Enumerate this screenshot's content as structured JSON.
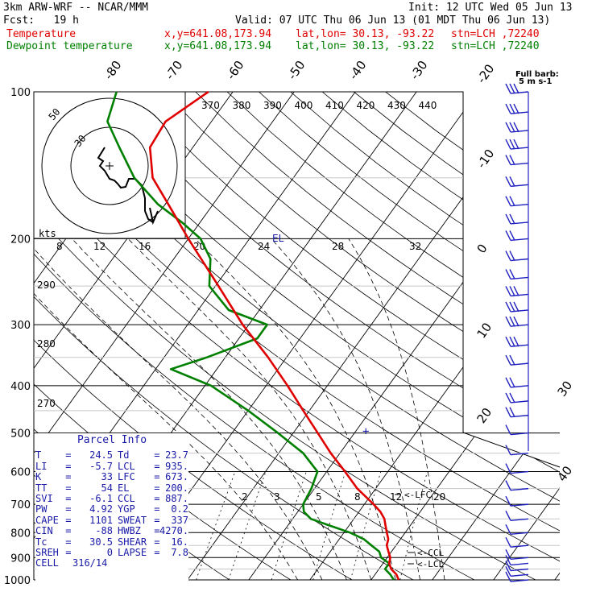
{
  "header": {
    "model": "3km ARW-WRF -- NCAR/MMM",
    "init": "Init: 12 UTC Wed 05 Jun 13",
    "fcst": "Fcst:   19 h",
    "valid": "Valid: 07 UTC Thu 06 Jun 13 (01 MDT Thu 06 Jun 13)",
    "temp_label": "Temperature",
    "dew_label": "Dewpoint temperature",
    "xy": "x,y=641.08,173.94",
    "latlon": "lat,lon= 30.13, -93.22",
    "stn": "stn=LCH ,72240"
  },
  "barb_legend": {
    "title": "Full barb:",
    "unit": "5 m s-1"
  },
  "colors": {
    "temperature": "#e00000",
    "dewpoint": "#008000",
    "barbs": "#2020c0",
    "parcel_text": "#1a1aa8"
  },
  "chart_data": {
    "type": "line",
    "subtype": "skew-t log-p",
    "pressure_axis": {
      "unit": "hPa",
      "range": [
        1000,
        100
      ],
      "scale": "log",
      "ticks": [
        100,
        200,
        300,
        400,
        500,
        600,
        700,
        800,
        900,
        1000
      ]
    },
    "temperature_axis": {
      "unit": "C",
      "skewed": true,
      "ticks": [
        -80,
        -70,
        -60,
        -50,
        -40,
        -30,
        -20,
        -10,
        0,
        10,
        20,
        30,
        40
      ]
    },
    "theta_labels": [
      370,
      380,
      390,
      400,
      410,
      420,
      430,
      440
    ],
    "mixing_ratio_labels": [
      2,
      3,
      5,
      8,
      12,
      20
    ],
    "theta_side_labels": [
      290,
      280,
      270
    ],
    "series": [
      {
        "name": "Temperature",
        "key": "temperature",
        "points": [
          [
            1000,
            24.5
          ],
          [
            975,
            23.5
          ],
          [
            950,
            22
          ],
          [
            925,
            21
          ],
          [
            900,
            20.5
          ],
          [
            875,
            19.5
          ],
          [
            850,
            18.5
          ],
          [
            825,
            18
          ],
          [
            800,
            17
          ],
          [
            775,
            16
          ],
          [
            750,
            15
          ],
          [
            725,
            13.5
          ],
          [
            700,
            11.5
          ],
          [
            650,
            7
          ],
          [
            600,
            3
          ],
          [
            550,
            -1.5
          ],
          [
            500,
            -6
          ],
          [
            450,
            -11
          ],
          [
            400,
            -16.5
          ],
          [
            350,
            -23
          ],
          [
            300,
            -31
          ],
          [
            250,
            -39.5
          ],
          [
            200,
            -50
          ],
          [
            175,
            -56
          ],
          [
            150,
            -63
          ],
          [
            130,
            -67
          ],
          [
            115,
            -67.5
          ],
          [
            100,
            -64
          ]
        ]
      },
      {
        "name": "Dewpoint temperature",
        "key": "dewpoint",
        "points": [
          [
            1000,
            23.7
          ],
          [
            975,
            22.5
          ],
          [
            950,
            21
          ],
          [
            925,
            21
          ],
          [
            900,
            19
          ],
          [
            875,
            18
          ],
          [
            850,
            16
          ],
          [
            825,
            14
          ],
          [
            800,
            11
          ],
          [
            775,
            7
          ],
          [
            750,
            3
          ],
          [
            725,
            1
          ],
          [
            700,
            0
          ],
          [
            650,
            -0.5
          ],
          [
            600,
            -1.5
          ],
          [
            550,
            -6
          ],
          [
            500,
            -12.5
          ],
          [
            450,
            -20
          ],
          [
            400,
            -29
          ],
          [
            370,
            -37.5
          ],
          [
            350,
            -33
          ],
          [
            320,
            -27
          ],
          [
            300,
            -27
          ],
          [
            280,
            -35
          ],
          [
            250,
            -41
          ],
          [
            220,
            -44
          ],
          [
            200,
            -48
          ],
          [
            185,
            -53
          ],
          [
            170,
            -59
          ],
          [
            150,
            -66
          ],
          [
            130,
            -72
          ],
          [
            115,
            -77
          ],
          [
            100,
            -79
          ]
        ]
      }
    ],
    "annotations": [
      {
        "text": "EL",
        "p": 200
      },
      {
        "text": "LFC",
        "p": 673
      },
      {
        "text": "CCL",
        "p": 887
      },
      {
        "text": "LCL",
        "p": 935
      }
    ],
    "hodograph": {
      "rings": [
        50,
        30
      ],
      "bottom_labels": [
        "8",
        "12",
        "16",
        "20",
        "24",
        "28",
        "32"
      ],
      "unit": "kts"
    },
    "wind_barbs": [
      {
        "p": 100,
        "spd": 30
      },
      {
        "p": 110,
        "spd": 30
      },
      {
        "p": 120,
        "spd": 25
      },
      {
        "p": 130,
        "spd": 25
      },
      {
        "p": 140,
        "spd": 20
      },
      {
        "p": 155,
        "spd": 20
      },
      {
        "p": 170,
        "spd": 15
      },
      {
        "p": 185,
        "spd": 15
      },
      {
        "p": 200,
        "spd": 15
      },
      {
        "p": 220,
        "spd": 20
      },
      {
        "p": 240,
        "spd": 20
      },
      {
        "p": 260,
        "spd": 25
      },
      {
        "p": 280,
        "spd": 25
      },
      {
        "p": 300,
        "spd": 30
      },
      {
        "p": 330,
        "spd": 25
      },
      {
        "p": 360,
        "spd": 20
      },
      {
        "p": 400,
        "spd": 15
      },
      {
        "p": 430,
        "spd": 15
      },
      {
        "p": 460,
        "spd": 15
      },
      {
        "p": 500,
        "spd": 10
      },
      {
        "p": 550,
        "spd": 5
      },
      {
        "p": 600,
        "spd": 5
      },
      {
        "p": 650,
        "spd": 5
      },
      {
        "p": 700,
        "spd": 5
      },
      {
        "p": 750,
        "spd": 10
      },
      {
        "p": 800,
        "spd": 10
      },
      {
        "p": 850,
        "spd": 10
      },
      {
        "p": 900,
        "spd": 5
      },
      {
        "p": 925,
        "spd": 5
      },
      {
        "p": 950,
        "spd": 5
      },
      {
        "p": 975,
        "spd": 5
      },
      {
        "p": 1000,
        "spd": 5
      }
    ]
  },
  "parcel": {
    "title": "Parcel Info",
    "rows": [
      [
        "T",
        "24.5",
        "Td",
        "23.7"
      ],
      [
        "LI",
        "-5.7",
        "LCL",
        "935."
      ],
      [
        "K",
        "33",
        "LFC",
        "673."
      ],
      [
        "TT",
        "54",
        "EL",
        "200."
      ],
      [
        "SVI",
        "-6.1",
        "CCL",
        "887."
      ],
      [
        "PW",
        "4.92",
        "YGP",
        "0.2"
      ],
      [
        "CAPE",
        "1101",
        "SWEAT",
        "337"
      ],
      [
        "CIN",
        "-88",
        "HWBZ",
        "4270."
      ],
      [
        "Tc",
        "30.5",
        "SHEAR",
        "16."
      ],
      [
        "SREH",
        "0",
        "LAPSE",
        "7.8"
      ]
    ],
    "cell_label": "CELL",
    "cell_value": "316/14"
  }
}
